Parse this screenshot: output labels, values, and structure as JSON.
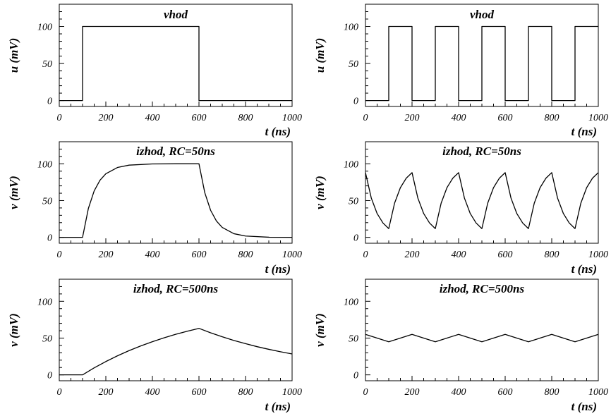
{
  "chart_data": [
    {
      "type": "line",
      "title": "vhod",
      "xlabel": "t (ns)",
      "ylabel": "u (mV)",
      "xlim": [
        0,
        1000
      ],
      "ylim": [
        -8,
        130
      ],
      "xticks": [
        0,
        200,
        400,
        600,
        800,
        1000
      ],
      "yticks": [
        0,
        50,
        100
      ],
      "grid": false,
      "series": [
        {
          "x": [
            0,
            100,
            100,
            600,
            600,
            1000
          ],
          "y": [
            0,
            0,
            100,
            100,
            0,
            0
          ]
        }
      ]
    },
    {
      "type": "line",
      "title": "vhod",
      "xlabel": "t (ns)",
      "ylabel": "u (mV)",
      "xlim": [
        0,
        1000
      ],
      "ylim": [
        -8,
        130
      ],
      "xticks": [
        0,
        200,
        400,
        600,
        800,
        1000
      ],
      "yticks": [
        0,
        50,
        100
      ],
      "grid": false,
      "series": [
        {
          "x": [
            0,
            100,
            100,
            200,
            200,
            300,
            300,
            400,
            400,
            500,
            500,
            600,
            600,
            700,
            700,
            800,
            800,
            900,
            900,
            1000
          ],
          "y": [
            0,
            0,
            100,
            100,
            0,
            0,
            100,
            100,
            0,
            0,
            100,
            100,
            0,
            0,
            100,
            100,
            0,
            0,
            100,
            100
          ]
        }
      ]
    },
    {
      "type": "line",
      "title": "izhod, RC=50ns",
      "xlabel": "t (ns)",
      "ylabel": "v (mV)",
      "xlim": [
        0,
        1000
      ],
      "ylim": [
        -8,
        130
      ],
      "xticks": [
        0,
        200,
        400,
        600,
        800,
        1000
      ],
      "yticks": [
        0,
        50,
        100
      ],
      "grid": false,
      "series": [
        {
          "x": [
            0,
            100,
            125,
            150,
            175,
            200,
            250,
            300,
            400,
            500,
            600,
            625,
            650,
            675,
            700,
            750,
            800,
            900,
            1000
          ],
          "y": [
            0,
            0,
            39.3,
            63.2,
            77.7,
            86.5,
            95.0,
            98.2,
            99.8,
            100,
            100,
            60.7,
            36.8,
            22.3,
            13.5,
            5.0,
            1.8,
            0.2,
            0
          ]
        }
      ]
    },
    {
      "type": "line",
      "title": "izhod, RC=50ns",
      "xlabel": "t (ns)",
      "ylabel": "v (mV)",
      "xlim": [
        0,
        1000
      ],
      "ylim": [
        -8,
        130
      ],
      "xticks": [
        0,
        200,
        400,
        600,
        800,
        1000
      ],
      "yticks": [
        0,
        50,
        100
      ],
      "grid": false,
      "series": [
        {
          "x": [
            0,
            25,
            50,
            75,
            100,
            125,
            150,
            175,
            200,
            225,
            250,
            275,
            300,
            325,
            350,
            375,
            400,
            425,
            450,
            475,
            500,
            525,
            550,
            575,
            600,
            625,
            650,
            675,
            700,
            725,
            750,
            775,
            800,
            825,
            850,
            875,
            900,
            925,
            950,
            975,
            1000
          ],
          "y": [
            88,
            53.4,
            32.4,
            19.6,
            11.9,
            46.5,
            67.6,
            80.4,
            88,
            53.4,
            32.4,
            19.6,
            11.9,
            46.5,
            67.6,
            80.4,
            88,
            53.4,
            32.4,
            19.6,
            11.9,
            46.5,
            67.6,
            80.4,
            88,
            53.4,
            32.4,
            19.6,
            11.9,
            46.5,
            67.6,
            80.4,
            88,
            53.4,
            32.4,
            19.6,
            11.9,
            46.5,
            67.6,
            80.4,
            88
          ]
        }
      ]
    },
    {
      "type": "line",
      "title": "izhod, RC=500ns",
      "xlabel": "t (ns)",
      "ylabel": "v (mV)",
      "xlim": [
        0,
        1000
      ],
      "ylim": [
        -8,
        130
      ],
      "xticks": [
        0,
        200,
        400,
        600,
        800,
        1000
      ],
      "yticks": [
        0,
        50,
        100
      ],
      "grid": false,
      "series": [
        {
          "x": [
            0,
            100,
            150,
            200,
            250,
            300,
            350,
            400,
            450,
            500,
            550,
            600,
            650,
            700,
            750,
            800,
            850,
            900,
            950,
            1000
          ],
          "y": [
            0,
            0,
            9.5,
            18.1,
            25.9,
            33.0,
            39.3,
            45.1,
            50.3,
            55.1,
            59.3,
            63.2,
            57.2,
            51.8,
            46.8,
            42.4,
            38.3,
            34.7,
            31.4,
            28.4
          ]
        }
      ]
    },
    {
      "type": "line",
      "title": "izhod, RC=500ns",
      "xlabel": "t (ns)",
      "ylabel": "v (mV)",
      "xlim": [
        0,
        1000
      ],
      "ylim": [
        -8,
        130
      ],
      "xticks": [
        0,
        200,
        400,
        600,
        800,
        1000
      ],
      "yticks": [
        0,
        50,
        100
      ],
      "grid": false,
      "series": [
        {
          "x": [
            0,
            100,
            200,
            300,
            400,
            500,
            600,
            700,
            800,
            900,
            1000
          ],
          "y": [
            55,
            45,
            55,
            45,
            55,
            45,
            55,
            45,
            55,
            45,
            55
          ]
        }
      ]
    }
  ]
}
